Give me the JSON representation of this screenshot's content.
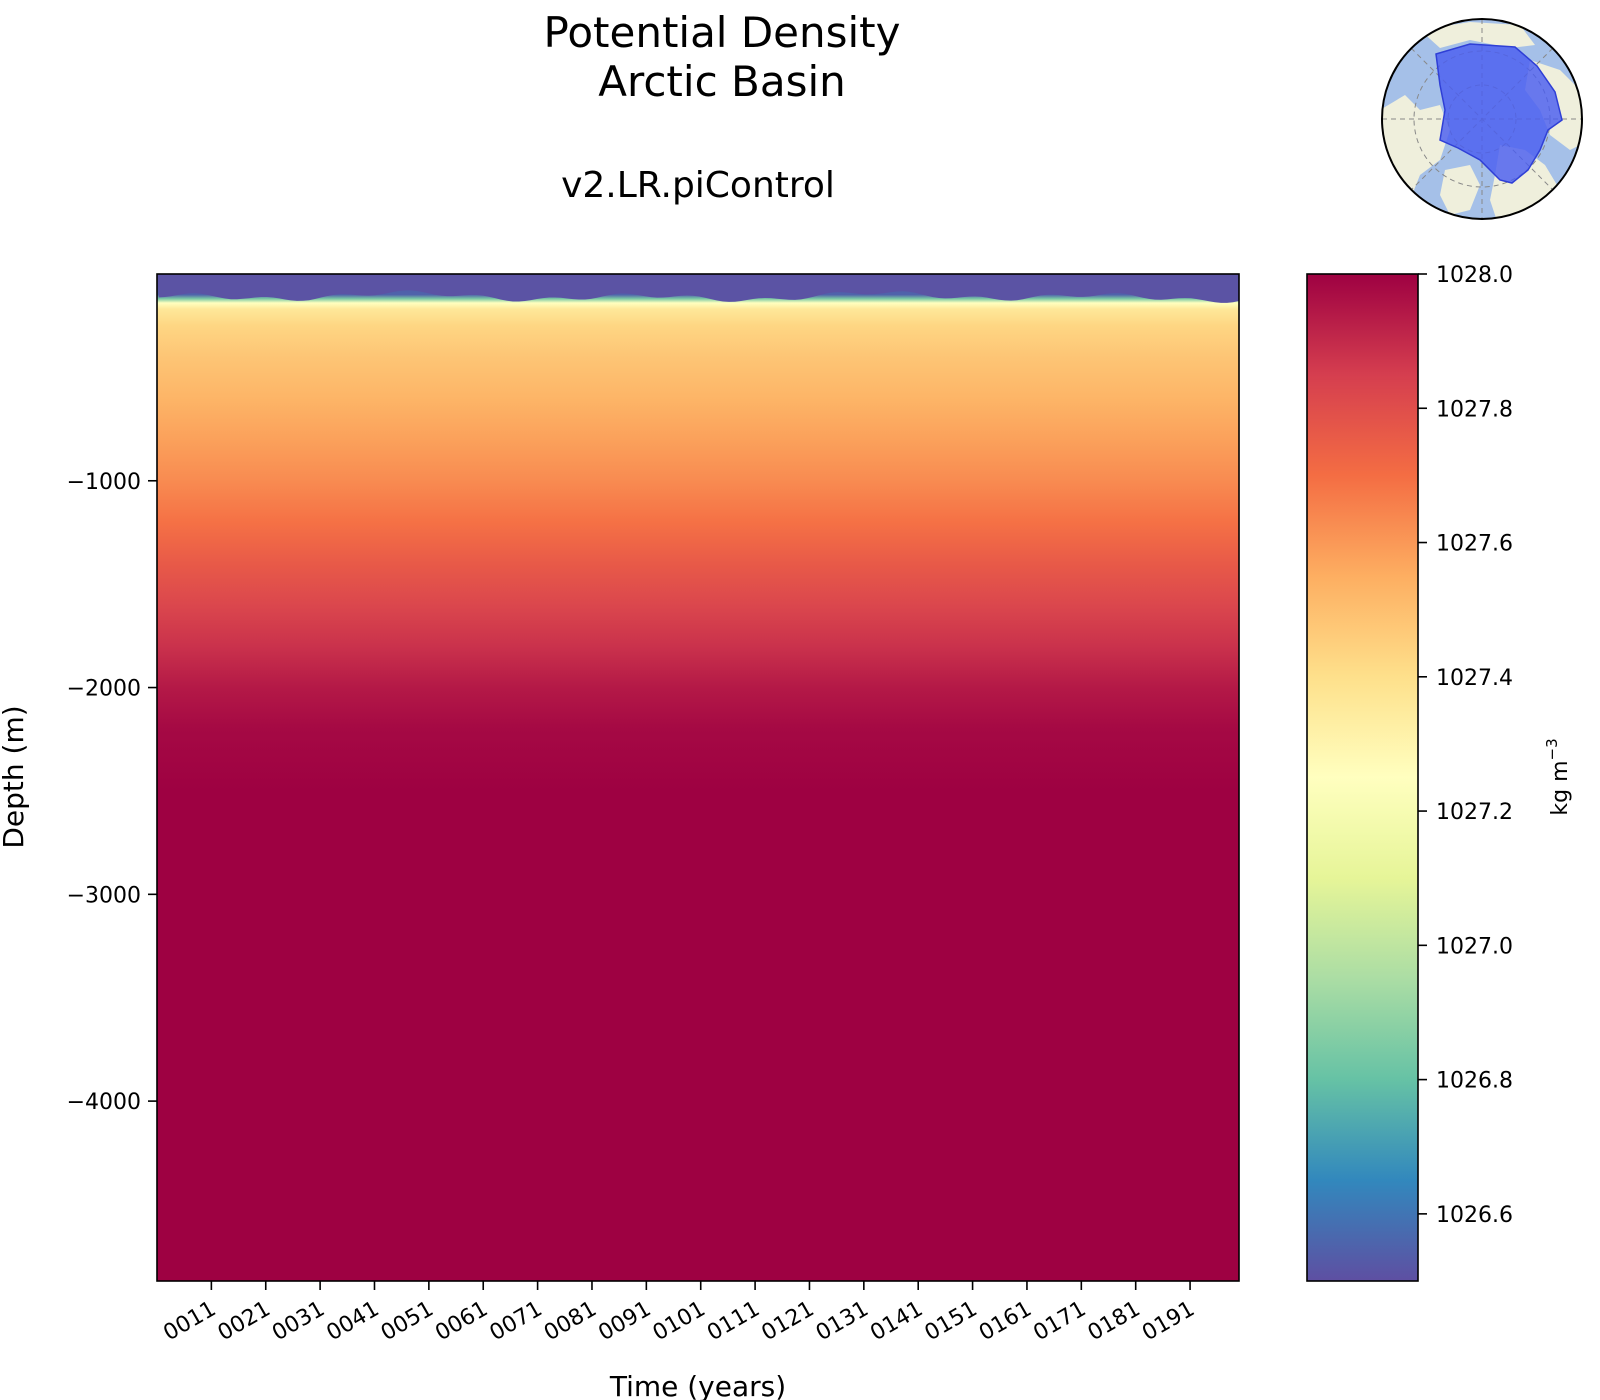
{
  "chart_data": {
    "type": "heatmap",
    "title": "Potential Density",
    "subtitle": "Arctic Basin",
    "run_name": "v2.LR.piControl",
    "xlabel": "Time (years)",
    "ylabel": "Depth (m)",
    "colorbar_label": "kg m",
    "colorbar_label_exponent": "−3",
    "colormap": "Spectral_r",
    "colormap_stops": [
      "#5e4fa2",
      "#3288bd",
      "#66c2a5",
      "#abdda4",
      "#e6f598",
      "#ffffbf",
      "#fee08b",
      "#fdae61",
      "#f46d43",
      "#d53e4f",
      "#9e0142"
    ],
    "x_range": [
      1,
      200
    ],
    "x_ticks": [
      11,
      21,
      31,
      41,
      51,
      61,
      71,
      81,
      91,
      101,
      111,
      121,
      131,
      141,
      151,
      161,
      171,
      181,
      191
    ],
    "x_tick_labels": [
      "0011",
      "0021",
      "0031",
      "0041",
      "0051",
      "0061",
      "0071",
      "0081",
      "0091",
      "0101",
      "0111",
      "0121",
      "0131",
      "0141",
      "0151",
      "0161",
      "0171",
      "0181",
      "0191"
    ],
    "y_range": [
      -4870,
      0
    ],
    "y_ticks": [
      -1000,
      -2000,
      -3000,
      -4000
    ],
    "y_tick_labels": [
      "−1000",
      "−2000",
      "−3000",
      "−4000"
    ],
    "color_range": [
      1026.5,
      1028.0
    ],
    "colorbar_ticks": [
      1026.6,
      1026.8,
      1027.0,
      1027.2,
      1027.4,
      1027.6,
      1027.8,
      1028.0
    ],
    "colorbar_tick_labels": [
      "1026.6",
      "1026.8",
      "1027.0",
      "1027.2",
      "1027.4",
      "1027.6",
      "1027.8",
      "1028.0"
    ],
    "depth_profile": {
      "depth": [
        0,
        -100,
        -120,
        -140,
        -170,
        -250,
        -400,
        -600,
        -800,
        -1000,
        -1200,
        -1400,
        -1600,
        -1800,
        -2000,
        -2200,
        -2500,
        -4870
      ],
      "density": [
        1026.52,
        1026.55,
        1026.85,
        1027.25,
        1027.36,
        1027.43,
        1027.48,
        1027.53,
        1027.58,
        1027.63,
        1027.69,
        1027.76,
        1027.82,
        1027.88,
        1027.94,
        1027.98,
        1028.0,
        1028.0
      ]
    }
  },
  "inset_map": {
    "region": "Arctic Basin",
    "projection": "north polar stereographic",
    "ocean_color": "#a5c0e8",
    "land_color": "#efefdc",
    "region_color": "#4b5ef0"
  }
}
